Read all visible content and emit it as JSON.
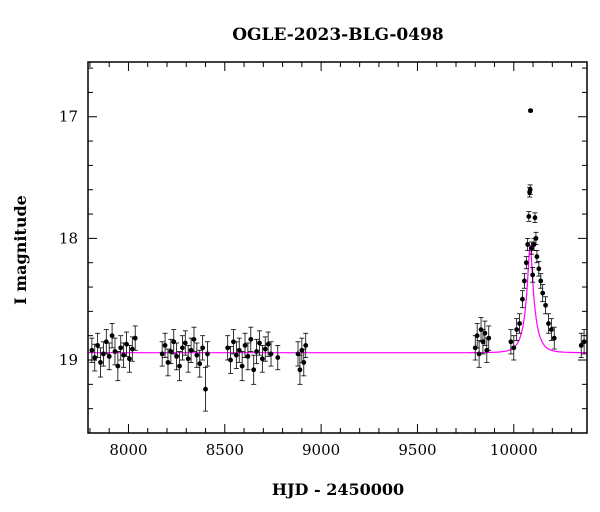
{
  "chart_data": {
    "type": "scatter",
    "title": "OGLE-2023-BLG-0498",
    "xlabel": "HJD - 2450000",
    "ylabel": "I magnitude",
    "xlim": [
      7790,
      10380
    ],
    "ylim": [
      19.6,
      16.55
    ],
    "y_inverted": true,
    "x_ticks": [
      8000,
      8500,
      9000,
      9500,
      10000
    ],
    "x_tick_labels": [
      "8000",
      "8500",
      "9000",
      "9500",
      "10000"
    ],
    "y_ticks": [
      17,
      18,
      19
    ],
    "y_tick_labels": [
      "17",
      "18",
      "19"
    ],
    "grid": false,
    "series": [
      {
        "kind": "points_with_errorbars",
        "color": "#000000",
        "points": [
          {
            "x": 7810,
            "y": 18.92,
            "e": 0.1
          },
          {
            "x": 7825,
            "y": 18.98,
            "e": 0.11
          },
          {
            "x": 7840,
            "y": 18.88,
            "e": 0.1
          },
          {
            "x": 7855,
            "y": 19.02,
            "e": 0.12
          },
          {
            "x": 7870,
            "y": 18.95,
            "e": 0.1
          },
          {
            "x": 7885,
            "y": 18.85,
            "e": 0.1
          },
          {
            "x": 7900,
            "y": 18.97,
            "e": 0.11
          },
          {
            "x": 7915,
            "y": 18.8,
            "e": 0.1
          },
          {
            "x": 7930,
            "y": 18.93,
            "e": 0.11
          },
          {
            "x": 7945,
            "y": 19.05,
            "e": 0.12
          },
          {
            "x": 7960,
            "y": 18.9,
            "e": 0.1
          },
          {
            "x": 7975,
            "y": 18.96,
            "e": 0.1
          },
          {
            "x": 7990,
            "y": 18.87,
            "e": 0.1
          },
          {
            "x": 8005,
            "y": 18.99,
            "e": 0.11
          },
          {
            "x": 8020,
            "y": 18.91,
            "e": 0.1
          },
          {
            "x": 8035,
            "y": 18.82,
            "e": 0.1
          },
          {
            "x": 8175,
            "y": 18.95,
            "e": 0.1
          },
          {
            "x": 8190,
            "y": 18.88,
            "e": 0.1
          },
          {
            "x": 8205,
            "y": 19.02,
            "e": 0.11
          },
          {
            "x": 8220,
            "y": 18.93,
            "e": 0.1
          },
          {
            "x": 8235,
            "y": 18.85,
            "e": 0.1
          },
          {
            "x": 8250,
            "y": 18.97,
            "e": 0.11
          },
          {
            "x": 8265,
            "y": 19.05,
            "e": 0.12
          },
          {
            "x": 8280,
            "y": 18.9,
            "e": 0.1
          },
          {
            "x": 8295,
            "y": 18.86,
            "e": 0.1
          },
          {
            "x": 8310,
            "y": 18.99,
            "e": 0.11
          },
          {
            "x": 8325,
            "y": 18.92,
            "e": 0.1
          },
          {
            "x": 8340,
            "y": 18.83,
            "e": 0.1
          },
          {
            "x": 8355,
            "y": 18.96,
            "e": 0.1
          },
          {
            "x": 8370,
            "y": 19.03,
            "e": 0.11
          },
          {
            "x": 8385,
            "y": 18.9,
            "e": 0.1
          },
          {
            "x": 8400,
            "y": 19.24,
            "e": 0.18
          },
          {
            "x": 8410,
            "y": 18.95,
            "e": 0.1
          },
          {
            "x": 8515,
            "y": 18.9,
            "e": 0.1
          },
          {
            "x": 8530,
            "y": 19.0,
            "e": 0.11
          },
          {
            "x": 8545,
            "y": 18.85,
            "e": 0.1
          },
          {
            "x": 8560,
            "y": 18.96,
            "e": 0.11
          },
          {
            "x": 8575,
            "y": 18.92,
            "e": 0.1
          },
          {
            "x": 8590,
            "y": 19.05,
            "e": 0.12
          },
          {
            "x": 8605,
            "y": 18.88,
            "e": 0.1
          },
          {
            "x": 8620,
            "y": 18.97,
            "e": 0.11
          },
          {
            "x": 8635,
            "y": 18.83,
            "e": 0.1
          },
          {
            "x": 8650,
            "y": 19.08,
            "e": 0.12
          },
          {
            "x": 8665,
            "y": 18.93,
            "e": 0.1
          },
          {
            "x": 8680,
            "y": 18.86,
            "e": 0.1
          },
          {
            "x": 8695,
            "y": 18.99,
            "e": 0.11
          },
          {
            "x": 8710,
            "y": 18.91,
            "e": 0.1
          },
          {
            "x": 8725,
            "y": 18.87,
            "e": 0.1
          },
          {
            "x": 8740,
            "y": 18.95,
            "e": 0.1
          },
          {
            "x": 8775,
            "y": 18.98,
            "e": 0.1
          },
          {
            "x": 8880,
            "y": 18.95,
            "e": 0.1
          },
          {
            "x": 8890,
            "y": 19.08,
            "e": 0.12
          },
          {
            "x": 8900,
            "y": 18.92,
            "e": 0.1
          },
          {
            "x": 8910,
            "y": 19.02,
            "e": 0.11
          },
          {
            "x": 8920,
            "y": 18.88,
            "e": 0.1
          },
          {
            "x": 9800,
            "y": 18.9,
            "e": 0.1
          },
          {
            "x": 9810,
            "y": 18.8,
            "e": 0.1
          },
          {
            "x": 9820,
            "y": 18.95,
            "e": 0.11
          },
          {
            "x": 9830,
            "y": 18.75,
            "e": 0.1
          },
          {
            "x": 9840,
            "y": 18.85,
            "e": 0.1
          },
          {
            "x": 9850,
            "y": 18.78,
            "e": 0.1
          },
          {
            "x": 9860,
            "y": 18.92,
            "e": 0.1
          },
          {
            "x": 9870,
            "y": 18.82,
            "e": 0.1
          },
          {
            "x": 9985,
            "y": 18.85,
            "e": 0.1
          },
          {
            "x": 10000,
            "y": 18.9,
            "e": 0.1
          },
          {
            "x": 10015,
            "y": 18.75,
            "e": 0.09
          },
          {
            "x": 10030,
            "y": 18.7,
            "e": 0.08
          },
          {
            "x": 10045,
            "y": 18.5,
            "e": 0.07
          },
          {
            "x": 10055,
            "y": 18.35,
            "e": 0.06
          },
          {
            "x": 10065,
            "y": 18.2,
            "e": 0.05
          },
          {
            "x": 10072,
            "y": 18.05,
            "e": 0.05
          },
          {
            "x": 10078,
            "y": 17.82,
            "e": 0.04
          },
          {
            "x": 10082,
            "y": 17.62,
            "e": 0.04
          },
          {
            "x": 10085,
            "y": 17.6,
            "e": 0.04
          },
          {
            "x": 10087,
            "y": 16.95,
            "e": 0.01
          },
          {
            "x": 10092,
            "y": 18.08,
            "e": 0.05
          },
          {
            "x": 10098,
            "y": 18.3,
            "e": 0.06
          },
          {
            "x": 10105,
            "y": 18.05,
            "e": 0.05
          },
          {
            "x": 10110,
            "y": 17.83,
            "e": 0.04
          },
          {
            "x": 10115,
            "y": 18.0,
            "e": 0.05
          },
          {
            "x": 10120,
            "y": 18.15,
            "e": 0.05
          },
          {
            "x": 10130,
            "y": 18.25,
            "e": 0.06
          },
          {
            "x": 10140,
            "y": 18.35,
            "e": 0.06
          },
          {
            "x": 10150,
            "y": 18.45,
            "e": 0.07
          },
          {
            "x": 10165,
            "y": 18.55,
            "e": 0.07
          },
          {
            "x": 10180,
            "y": 18.7,
            "e": 0.08
          },
          {
            "x": 10195,
            "y": 18.75,
            "e": 0.09
          },
          {
            "x": 10210,
            "y": 18.82,
            "e": 0.09
          },
          {
            "x": 10350,
            "y": 18.88,
            "e": 0.1
          },
          {
            "x": 10365,
            "y": 18.85,
            "e": 0.1
          }
        ]
      },
      {
        "kind": "model_curve",
        "color": "#ff00ff",
        "baseline": 18.94,
        "peak_x": 10085,
        "peak_y": 18.05
      }
    ]
  }
}
